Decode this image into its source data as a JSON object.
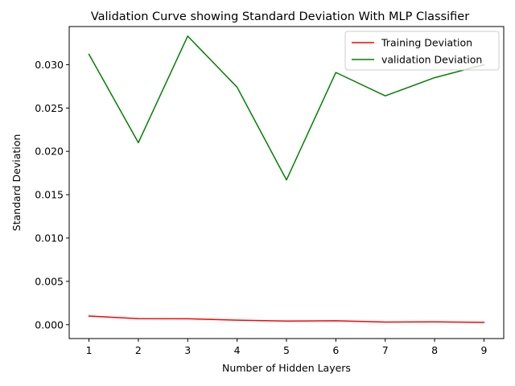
{
  "chart_data": {
    "type": "line",
    "title": "Validation Curve showing Standard Deviation With MLP Classifier",
    "xlabel": "Number of Hidden Layers",
    "ylabel": "Standard Deviation",
    "x": [
      1,
      2,
      3,
      4,
      5,
      6,
      7,
      8,
      9
    ],
    "xlim": [
      0.6,
      9.4
    ],
    "ylim": [
      -0.0016,
      0.0344
    ],
    "xticks": [
      1,
      2,
      3,
      4,
      5,
      6,
      7,
      8,
      9
    ],
    "yticks": [
      0.0,
      0.005,
      0.01,
      0.015,
      0.02,
      0.025,
      0.03
    ],
    "ytick_labels": [
      "0.000",
      "0.005",
      "0.010",
      "0.015",
      "0.020",
      "0.025",
      "0.030"
    ],
    "grid": false,
    "legend_position": "top-right",
    "series": [
      {
        "name": "Training Deviation",
        "color": "#ff0000",
        "values": [
          0.001,
          0.0007,
          0.00068,
          0.00052,
          0.00042,
          0.00045,
          0.0003,
          0.00032,
          0.00027
        ]
      },
      {
        "name": "validation Deviation",
        "color": "#008000",
        "values": [
          0.0312,
          0.021,
          0.0333,
          0.0274,
          0.0167,
          0.0291,
          0.0264,
          0.0285,
          0.03
        ]
      }
    ]
  }
}
